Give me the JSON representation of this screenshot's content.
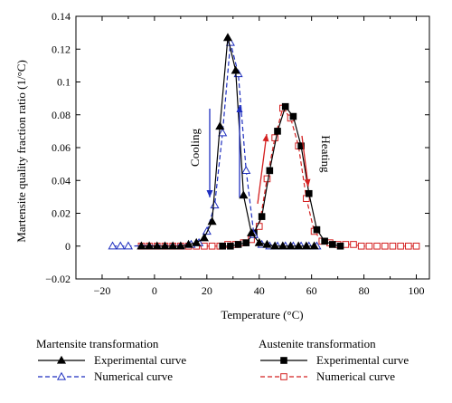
{
  "chart_data": {
    "type": "line",
    "xlabel": "Temperature (°C)",
    "ylabel": "Martensite quality fraction ratio (1/°C)",
    "xlim": [
      -30,
      105
    ],
    "ylim": [
      -0.02,
      0.14
    ],
    "xticks": [
      -20,
      -10,
      0,
      10,
      20,
      30,
      40,
      50,
      60,
      70,
      80,
      90,
      100
    ],
    "xtick_labels": [
      "−20",
      "",
      "0",
      "",
      "20",
      "",
      "40",
      "",
      "60",
      "",
      "80",
      "",
      "100"
    ],
    "yticks": [
      -0.02,
      0,
      0.02,
      0.04,
      0.06,
      0.08,
      0.1,
      0.12,
      0.14
    ],
    "ytick_labels": [
      "−0.02",
      "0",
      "0.02",
      "0.04",
      "0.06",
      "0.08",
      "0.1",
      "0.12",
      "0.14"
    ],
    "legend_groups": [
      {
        "title": "Martensite transformation",
        "entries": [
          "Experimental curve",
          "Numerical curve"
        ]
      },
      {
        "title": "Austenite transformation",
        "entries": [
          "Experimental curve",
          "Numerical curve"
        ]
      }
    ],
    "series": [
      {
        "name": "Experimental curve",
        "group": "Martensite transformation",
        "color": "#000000",
        "marker": "triangle-filled",
        "dash": "solid",
        "x": [
          -5,
          -2,
          1,
          4,
          7,
          10,
          13,
          16,
          19,
          22,
          25,
          28,
          31,
          34,
          37,
          40,
          43,
          46,
          49,
          52,
          55,
          58,
          61
        ],
        "y": [
          0,
          0,
          0,
          0,
          0,
          0,
          0.001,
          0.002,
          0.005,
          0.015,
          0.073,
          0.127,
          0.107,
          0.031,
          0.008,
          0.002,
          0.001,
          0,
          0,
          0,
          0,
          0,
          0
        ]
      },
      {
        "name": "Numerical curve",
        "group": "Martensite transformation",
        "color": "#1f2fbf",
        "marker": "triangle-open",
        "dash": "dashed",
        "x": [
          -16,
          -13,
          -10,
          14,
          17,
          20,
          23,
          26,
          29,
          32,
          35,
          38,
          41,
          44,
          47,
          50,
          53,
          56,
          59,
          62
        ],
        "y": [
          0,
          0,
          0,
          0.001,
          0.002,
          0.009,
          0.025,
          0.069,
          0.124,
          0.105,
          0.046,
          0.007,
          0.001,
          0,
          0,
          0,
          0,
          0,
          0,
          0
        ]
      },
      {
        "name": "Experimental curve",
        "group": "Austenite transformation",
        "color": "#000000",
        "marker": "square-filled",
        "dash": "solid",
        "x": [
          26,
          29,
          32,
          35,
          38,
          41,
          44,
          47,
          50,
          53,
          56,
          59,
          62,
          65,
          68,
          71
        ],
        "y": [
          0,
          0,
          0.001,
          0.002,
          0.008,
          0.018,
          0.046,
          0.07,
          0.085,
          0.079,
          0.061,
          0.032,
          0.01,
          0.003,
          0.001,
          0
        ]
      },
      {
        "name": "Numerical curve",
        "group": "Austenite transformation",
        "color": "#d42020",
        "marker": "square-open",
        "dash": "dashed",
        "x": [
          -5,
          -2,
          1,
          4,
          7,
          10,
          13,
          16,
          19,
          22,
          25,
          28,
          31,
          34,
          37,
          40,
          43,
          46,
          49,
          52,
          55,
          58,
          61,
          64,
          67,
          70,
          73,
          76,
          79,
          82,
          85,
          88,
          91,
          94,
          97,
          100
        ],
        "y": [
          0,
          0,
          0,
          0,
          0,
          0,
          0,
          0,
          0,
          0,
          0,
          0.001,
          0.001,
          0.002,
          0.004,
          0.012,
          0.041,
          0.066,
          0.084,
          0.078,
          0.061,
          0.029,
          0.009,
          0.003,
          0.002,
          0.001,
          0.001,
          0.001,
          0,
          0,
          0,
          0,
          0,
          0,
          0,
          0
        ]
      }
    ],
    "annotations": [
      {
        "text": "Cooling",
        "color": "#1f2fbf"
      },
      {
        "text": "Heating",
        "color": "#d42020"
      }
    ]
  }
}
